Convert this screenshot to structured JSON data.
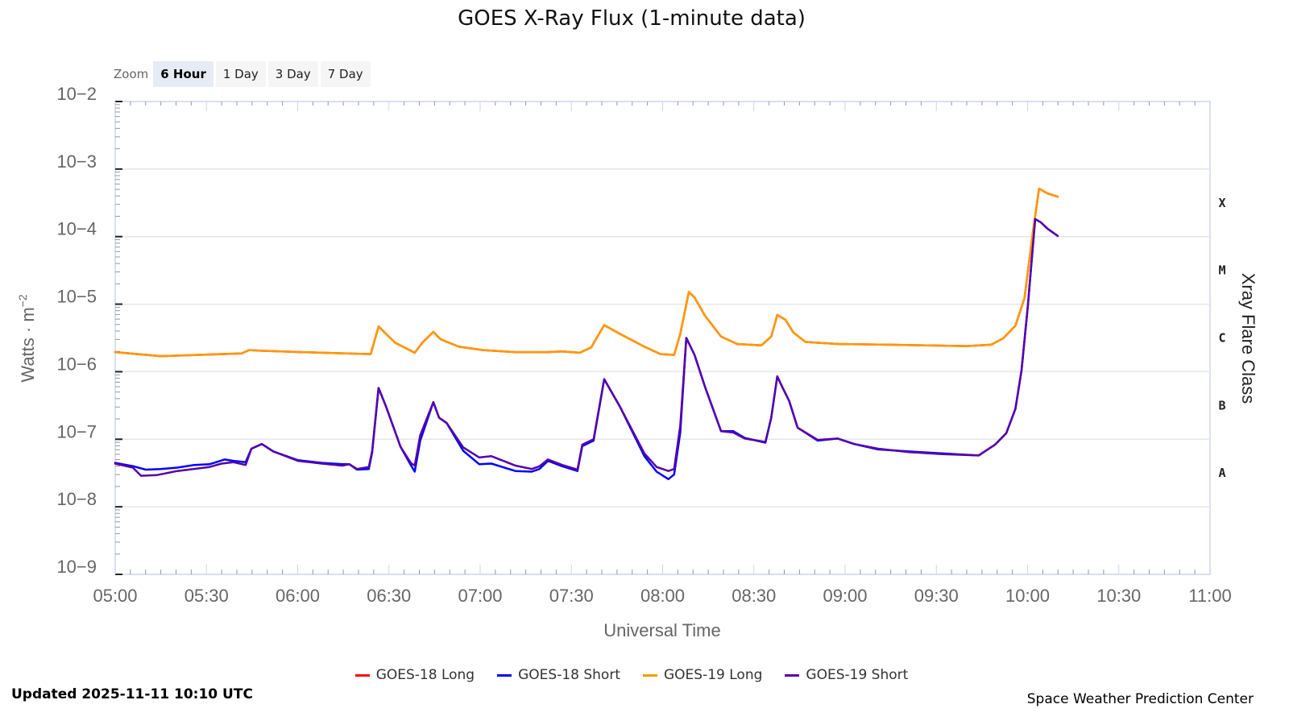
{
  "title": "GOES X-Ray Flux (1-minute data)",
  "zoom": {
    "label": "Zoom",
    "buttons": [
      {
        "label": "6 Hour",
        "active": true
      },
      {
        "label": "1 Day",
        "active": false
      },
      {
        "label": "3 Day",
        "active": false
      },
      {
        "label": "7 Day",
        "active": false
      }
    ]
  },
  "legend": [
    {
      "label": "GOES-18 Long",
      "color": "#ff0000"
    },
    {
      "label": "GOES-18 Short",
      "color": "#0000ff"
    },
    {
      "label": "GOES-19 Long",
      "color": "#ff9900"
    },
    {
      "label": "GOES-19 Short",
      "color": "#5500aa"
    }
  ],
  "footer": {
    "updated": "Updated 2025-11-11 10:10 UTC",
    "credit": "Space Weather Prediction Center"
  },
  "chart_data": {
    "type": "line",
    "title": "GOES X-Ray Flux (1-minute data)",
    "xlabel": "Universal Time",
    "ylabel": "Watts · m⁻²",
    "y2label": "Xray Flare Class",
    "yscale": "log",
    "ylim": [
      1e-09,
      0.01
    ],
    "y_ticks": [
      "10−2",
      "10−3",
      "10−4",
      "10−5",
      "10−6",
      "10−7",
      "10−8",
      "10−9"
    ],
    "x_range": [
      "05:00",
      "11:00"
    ],
    "x_ticks": [
      "05:00",
      "05:30",
      "06:00",
      "06:30",
      "07:00",
      "07:30",
      "08:00",
      "08:30",
      "09:00",
      "09:30",
      "10:00",
      "10:30",
      "11:00"
    ],
    "flare_classes": [
      {
        "label": "X",
        "log_center": -3.5
      },
      {
        "label": "M",
        "log_center": -4.5
      },
      {
        "label": "C",
        "log_center": -5.5
      },
      {
        "label": "B",
        "log_center": -6.5
      },
      {
        "label": "A",
        "log_center": -7.5
      }
    ],
    "grid": true,
    "legend_position": "bottom",
    "x_units": "minutes since 05:00 UTC",
    "y_units": "log10(W/m^2)",
    "series": [
      {
        "name": "GOES-18 Long",
        "color": "#ff0000",
        "points": [
          [
            0,
            -5.71
          ],
          [
            15,
            -5.77
          ],
          [
            41.6,
            -5.73
          ],
          [
            44,
            -5.68
          ],
          [
            48,
            -5.69
          ],
          [
            68,
            -5.72
          ],
          [
            84,
            -5.74
          ],
          [
            86.6,
            -5.33
          ],
          [
            92,
            -5.57
          ],
          [
            98.5,
            -5.72
          ],
          [
            101,
            -5.57
          ],
          [
            104.6,
            -5.41
          ],
          [
            107,
            -5.52
          ],
          [
            113,
            -5.63
          ],
          [
            121,
            -5.68
          ],
          [
            131.6,
            -5.71
          ],
          [
            142,
            -5.71
          ],
          [
            147,
            -5.7
          ],
          [
            152.8,
            -5.72
          ],
          [
            156.5,
            -5.64
          ],
          [
            160.8,
            -5.31
          ],
          [
            166,
            -5.44
          ],
          [
            174,
            -5.63
          ],
          [
            179.3,
            -5.74
          ],
          [
            183.8,
            -5.75
          ],
          [
            185.8,
            -5.44
          ],
          [
            188.6,
            -4.82
          ],
          [
            190.5,
            -4.9
          ],
          [
            193.9,
            -5.17
          ],
          [
            199.2,
            -5.48
          ],
          [
            204.5,
            -5.59
          ],
          [
            212.5,
            -5.61
          ],
          [
            215.7,
            -5.48
          ],
          [
            217.7,
            -5.16
          ],
          [
            220.4,
            -5.23
          ],
          [
            223,
            -5.42
          ],
          [
            227,
            -5.56
          ],
          [
            237.6,
            -5.59
          ],
          [
            253.5,
            -5.6
          ],
          [
            280,
            -5.62
          ],
          [
            288,
            -5.6
          ],
          [
            291.9,
            -5.51
          ],
          [
            296,
            -5.32
          ],
          [
            299,
            -4.91
          ],
          [
            301.7,
            -3.95
          ],
          [
            303.8,
            -3.29
          ],
          [
            306.5,
            -3.36
          ],
          [
            309.9,
            -3.41
          ]
        ]
      },
      {
        "name": "GOES-18 Short",
        "color": "#0000ff",
        "points": [
          [
            0,
            -7.35
          ],
          [
            6,
            -7.4
          ],
          [
            10,
            -7.45
          ],
          [
            15,
            -7.44
          ],
          [
            20.4,
            -7.42
          ],
          [
            26,
            -7.38
          ],
          [
            31,
            -7.37
          ],
          [
            36,
            -7.3
          ],
          [
            38.9,
            -7.32
          ],
          [
            42.9,
            -7.34
          ],
          [
            44.8,
            -7.14
          ],
          [
            48.2,
            -7.07
          ],
          [
            52,
            -7.18
          ],
          [
            60.1,
            -7.31
          ],
          [
            68,
            -7.35
          ],
          [
            74.7,
            -7.37
          ],
          [
            77,
            -7.37
          ],
          [
            79.5,
            -7.45
          ],
          [
            83.4,
            -7.44
          ],
          [
            84.5,
            -7.19
          ],
          [
            86.6,
            -6.24
          ],
          [
            89,
            -6.51
          ],
          [
            93.8,
            -7.11
          ],
          [
            97.2,
            -7.38
          ],
          [
            98.5,
            -7.48
          ],
          [
            100.3,
            -7.02
          ],
          [
            104.6,
            -6.45
          ],
          [
            106.5,
            -6.68
          ],
          [
            109,
            -6.76
          ],
          [
            114.4,
            -7.17
          ],
          [
            119.7,
            -7.37
          ],
          [
            123.7,
            -7.36
          ],
          [
            131.6,
            -7.47
          ],
          [
            137,
            -7.48
          ],
          [
            139.5,
            -7.44
          ],
          [
            142.3,
            -7.32
          ],
          [
            147,
            -7.4
          ],
          [
            152,
            -7.47
          ],
          [
            153.6,
            -7.1
          ],
          [
            157.3,
            -7.02
          ],
          [
            160.8,
            -6.11
          ],
          [
            166,
            -6.52
          ],
          [
            174,
            -7.25
          ],
          [
            178,
            -7.48
          ],
          [
            181.9,
            -7.59
          ],
          [
            183.8,
            -7.52
          ],
          [
            185.8,
            -6.9
          ],
          [
            187.8,
            -5.5
          ],
          [
            190.5,
            -5.75
          ],
          [
            193.9,
            -6.22
          ],
          [
            199.2,
            -6.88
          ],
          [
            203.2,
            -6.88
          ],
          [
            207,
            -6.98
          ],
          [
            213.8,
            -7.05
          ],
          [
            215.7,
            -6.68
          ],
          [
            217.7,
            -6.07
          ],
          [
            219.6,
            -6.25
          ],
          [
            221.6,
            -6.43
          ],
          [
            224.4,
            -6.83
          ],
          [
            231,
            -7.02
          ],
          [
            237.6,
            -6.99
          ],
          [
            243,
            -7.07
          ],
          [
            250.8,
            -7.15
          ],
          [
            261,
            -7.18
          ],
          [
            272,
            -7.21
          ],
          [
            283.9,
            -7.24
          ],
          [
            289.3,
            -7.08
          ],
          [
            293,
            -6.91
          ],
          [
            296,
            -6.55
          ],
          [
            298,
            -5.98
          ],
          [
            300.1,
            -5.02
          ],
          [
            302.5,
            -3.74
          ],
          [
            304.4,
            -3.79
          ],
          [
            306.5,
            -3.88
          ],
          [
            309.9,
            -3.99
          ]
        ]
      },
      {
        "name": "GOES-19 Long",
        "color": "#ff9900",
        "points": [
          [
            0,
            -5.71
          ],
          [
            15,
            -5.77
          ],
          [
            41.6,
            -5.73
          ],
          [
            44,
            -5.68
          ],
          [
            48,
            -5.69
          ],
          [
            68,
            -5.72
          ],
          [
            84,
            -5.74
          ],
          [
            86.6,
            -5.33
          ],
          [
            92,
            -5.57
          ],
          [
            98.5,
            -5.72
          ],
          [
            101,
            -5.57
          ],
          [
            104.6,
            -5.41
          ],
          [
            107,
            -5.52
          ],
          [
            113,
            -5.63
          ],
          [
            121,
            -5.68
          ],
          [
            131.6,
            -5.71
          ],
          [
            142,
            -5.71
          ],
          [
            147,
            -5.7
          ],
          [
            152.8,
            -5.72
          ],
          [
            156.5,
            -5.64
          ],
          [
            160.8,
            -5.31
          ],
          [
            166,
            -5.44
          ],
          [
            174,
            -5.63
          ],
          [
            179.3,
            -5.74
          ],
          [
            183.8,
            -5.75
          ],
          [
            185.8,
            -5.44
          ],
          [
            188.6,
            -4.82
          ],
          [
            190.5,
            -4.9
          ],
          [
            193.9,
            -5.17
          ],
          [
            199.2,
            -5.48
          ],
          [
            204.5,
            -5.59
          ],
          [
            212.5,
            -5.61
          ],
          [
            215.7,
            -5.48
          ],
          [
            217.7,
            -5.16
          ],
          [
            220.4,
            -5.23
          ],
          [
            223,
            -5.42
          ],
          [
            227,
            -5.56
          ],
          [
            237.6,
            -5.59
          ],
          [
            253.5,
            -5.6
          ],
          [
            280,
            -5.62
          ],
          [
            288,
            -5.6
          ],
          [
            291.9,
            -5.51
          ],
          [
            296,
            -5.32
          ],
          [
            299,
            -4.91
          ],
          [
            301.7,
            -3.95
          ],
          [
            303.8,
            -3.29
          ],
          [
            306.5,
            -3.36
          ],
          [
            309.9,
            -3.41
          ]
        ]
      },
      {
        "name": "GOES-19 Short",
        "color": "#5500aa",
        "points": [
          [
            0,
            -7.36
          ],
          [
            5.8,
            -7.42
          ],
          [
            8.5,
            -7.54
          ],
          [
            13.8,
            -7.53
          ],
          [
            20.4,
            -7.47
          ],
          [
            31,
            -7.41
          ],
          [
            35,
            -7.36
          ],
          [
            38.9,
            -7.34
          ],
          [
            42.9,
            -7.38
          ],
          [
            44.8,
            -7.14
          ],
          [
            48.2,
            -7.07
          ],
          [
            52,
            -7.18
          ],
          [
            60.1,
            -7.32
          ],
          [
            68,
            -7.36
          ],
          [
            74.7,
            -7.39
          ],
          [
            77,
            -7.37
          ],
          [
            79.5,
            -7.44
          ],
          [
            83.4,
            -7.41
          ],
          [
            84.5,
            -7.17
          ],
          [
            86.6,
            -6.24
          ],
          [
            89,
            -6.51
          ],
          [
            93.8,
            -7.11
          ],
          [
            97.2,
            -7.35
          ],
          [
            98.5,
            -7.39
          ],
          [
            100.3,
            -6.94
          ],
          [
            104.6,
            -6.45
          ],
          [
            106.5,
            -6.68
          ],
          [
            109,
            -6.76
          ],
          [
            114.4,
            -7.12
          ],
          [
            119.7,
            -7.27
          ],
          [
            123.7,
            -7.25
          ],
          [
            131.6,
            -7.39
          ],
          [
            137,
            -7.44
          ],
          [
            139.5,
            -7.4
          ],
          [
            142.3,
            -7.3
          ],
          [
            147,
            -7.38
          ],
          [
            152,
            -7.45
          ],
          [
            153.6,
            -7.08
          ],
          [
            157.3,
            -7.0
          ],
          [
            160.8,
            -6.11
          ],
          [
            166,
            -6.52
          ],
          [
            174,
            -7.21
          ],
          [
            178,
            -7.41
          ],
          [
            181.9,
            -7.47
          ],
          [
            183.8,
            -7.44
          ],
          [
            185.8,
            -6.8
          ],
          [
            187.8,
            -5.5
          ],
          [
            190.5,
            -5.75
          ],
          [
            193.9,
            -6.22
          ],
          [
            199.2,
            -6.88
          ],
          [
            203.2,
            -6.9
          ],
          [
            207,
            -6.99
          ],
          [
            213.8,
            -7.04
          ],
          [
            215.7,
            -6.68
          ],
          [
            217.7,
            -6.07
          ],
          [
            219.6,
            -6.25
          ],
          [
            221.6,
            -6.43
          ],
          [
            224.4,
            -6.83
          ],
          [
            231,
            -7.01
          ],
          [
            237.6,
            -6.99
          ],
          [
            243,
            -7.07
          ],
          [
            250.8,
            -7.14
          ],
          [
            261,
            -7.19
          ],
          [
            272,
            -7.22
          ],
          [
            283.9,
            -7.24
          ],
          [
            289.3,
            -7.08
          ],
          [
            293,
            -6.91
          ],
          [
            296,
            -6.55
          ],
          [
            298,
            -5.98
          ],
          [
            300.1,
            -5.02
          ],
          [
            302.5,
            -3.74
          ],
          [
            304.4,
            -3.79
          ],
          [
            306.5,
            -3.88
          ],
          [
            309.9,
            -3.99
          ]
        ]
      }
    ]
  }
}
